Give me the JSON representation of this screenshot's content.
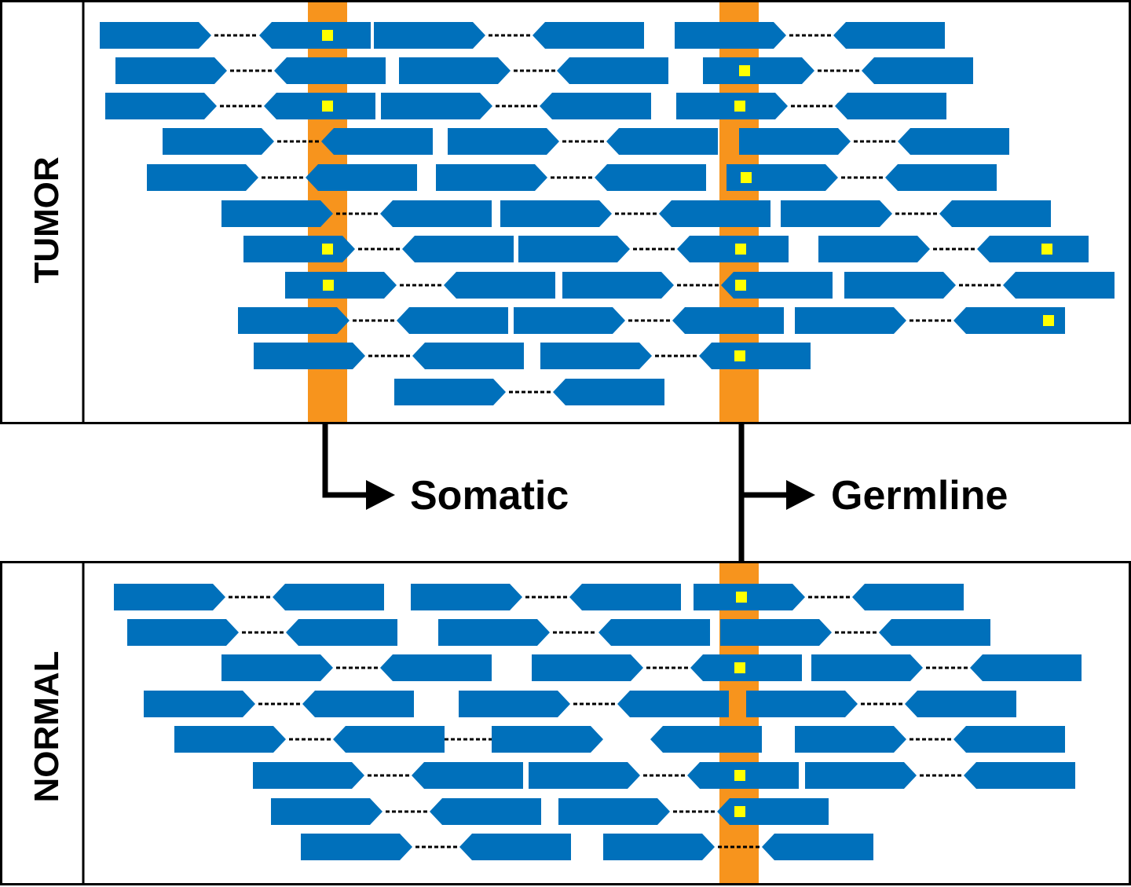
{
  "panels": {
    "tumor_label": "TUMOR",
    "normal_label": "NORMAL"
  },
  "calls": {
    "somatic_label": "Somatic",
    "germline_label": "Germline"
  },
  "colors": {
    "read": "#0070bb",
    "variant_column": "#f7941d",
    "variant_base": "#ffff00",
    "outline": "#000000",
    "background": "#ffffff"
  }
}
